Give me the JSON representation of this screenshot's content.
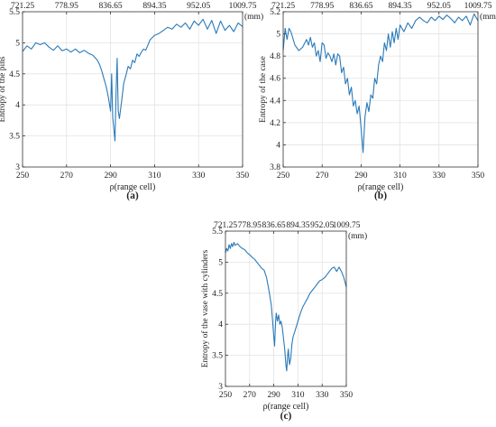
{
  "chart_data": [
    {
      "type": "line",
      "caption": "(a)",
      "xlabel": "ρ(range cell)",
      "ylabel": "Entropy of the pins",
      "top_axis_unit": "(mm)",
      "xlim": [
        250,
        350
      ],
      "ylim": [
        3,
        5.5
      ],
      "x_ticks": [
        250,
        270,
        290,
        310,
        330,
        350
      ],
      "y_ticks": [
        3,
        3.5,
        4,
        4.5,
        5,
        5.5
      ],
      "y_tick_labels": [
        "3",
        "3.5",
        "4",
        "4.5",
        "5",
        "5.5"
      ],
      "top_ticks": [
        "721.25",
        "778.95",
        "836.65",
        "894.35",
        "952.05",
        "1009.75"
      ],
      "grid": true,
      "color": "#2a7ab8",
      "points": [
        [
          250,
          4.86
        ],
        [
          252,
          4.95
        ],
        [
          254,
          4.9
        ],
        [
          256,
          5.0
        ],
        [
          258,
          4.97
        ],
        [
          260,
          5.0
        ],
        [
          262,
          4.93
        ],
        [
          264,
          4.88
        ],
        [
          266,
          4.95
        ],
        [
          268,
          4.87
        ],
        [
          270,
          4.9
        ],
        [
          272,
          4.85
        ],
        [
          274,
          4.9
        ],
        [
          276,
          4.84
        ],
        [
          278,
          4.88
        ],
        [
          280,
          4.83
        ],
        [
          282,
          4.8
        ],
        [
          284,
          4.72
        ],
        [
          285,
          4.65
        ],
        [
          286,
          4.55
        ],
        [
          287,
          4.42
        ],
        [
          288,
          4.3
        ],
        [
          289,
          4.12
        ],
        [
          290,
          3.9
        ],
        [
          290.5,
          4.5
        ],
        [
          291,
          3.8
        ],
        [
          292,
          3.42
        ],
        [
          292.5,
          4.2
        ],
        [
          293,
          4.75
        ],
        [
          293.5,
          3.9
        ],
        [
          294,
          3.78
        ],
        [
          295,
          4.05
        ],
        [
          296,
          4.35
        ],
        [
          297,
          4.48
        ],
        [
          298,
          4.62
        ],
        [
          299,
          4.58
        ],
        [
          300,
          4.72
        ],
        [
          301,
          4.68
        ],
        [
          302,
          4.82
        ],
        [
          303,
          4.78
        ],
        [
          304,
          4.85
        ],
        [
          305,
          4.9
        ],
        [
          306,
          4.88
        ],
        [
          308,
          5.05
        ],
        [
          310,
          5.12
        ],
        [
          312,
          5.15
        ],
        [
          314,
          5.2
        ],
        [
          316,
          5.25
        ],
        [
          318,
          5.22
        ],
        [
          320,
          5.3
        ],
        [
          322,
          5.25
        ],
        [
          324,
          5.32
        ],
        [
          326,
          5.22
        ],
        [
          328,
          5.35
        ],
        [
          330,
          5.28
        ],
        [
          332,
          5.38
        ],
        [
          334,
          5.22
        ],
        [
          336,
          5.36
        ],
        [
          338,
          5.15
        ],
        [
          340,
          5.35
        ],
        [
          342,
          5.2
        ],
        [
          344,
          5.28
        ],
        [
          346,
          5.18
        ],
        [
          348,
          5.32
        ],
        [
          350,
          5.26
        ]
      ]
    },
    {
      "type": "line",
      "caption": "(b)",
      "xlabel": "ρ(range cell)",
      "ylabel": "Entropy of the case",
      "top_axis_unit": "(mm)",
      "xlim": [
        250,
        350
      ],
      "ylim": [
        3.8,
        5.2
      ],
      "x_ticks": [
        250,
        270,
        290,
        310,
        330,
        350
      ],
      "y_ticks": [
        3.8,
        4,
        4.2,
        4.4,
        4.6,
        4.8,
        5,
        5.2
      ],
      "y_tick_labels": [
        "3.8",
        "4",
        "4.2",
        "4.4",
        "4.6",
        "4.8",
        "5",
        "5.2"
      ],
      "top_ticks": [
        "721.25",
        "778.95",
        "836.65",
        "894.35",
        "952.05",
        "1009.75"
      ],
      "grid": true,
      "color": "#2a7ab8",
      "points": [
        [
          250,
          4.85
        ],
        [
          251,
          5.05
        ],
        [
          252,
          4.95
        ],
        [
          253,
          5.05
        ],
        [
          254,
          5.02
        ],
        [
          256,
          4.9
        ],
        [
          258,
          4.85
        ],
        [
          260,
          4.88
        ],
        [
          262,
          4.95
        ],
        [
          263,
          4.9
        ],
        [
          264,
          4.97
        ],
        [
          265,
          4.88
        ],
        [
          266,
          4.92
        ],
        [
          267,
          4.8
        ],
        [
          268,
          4.85
        ],
        [
          269,
          4.75
        ],
        [
          270,
          4.92
        ],
        [
          271,
          4.9
        ],
        [
          272,
          4.78
        ],
        [
          273,
          4.83
        ],
        [
          274,
          4.8
        ],
        [
          275,
          4.75
        ],
        [
          276,
          4.82
        ],
        [
          277,
          4.72
        ],
        [
          278,
          4.82
        ],
        [
          279,
          4.8
        ],
        [
          280,
          4.65
        ],
        [
          281,
          4.7
        ],
        [
          282,
          4.55
        ],
        [
          283,
          4.6
        ],
        [
          284,
          4.45
        ],
        [
          285,
          4.52
        ],
        [
          286,
          4.35
        ],
        [
          287,
          4.4
        ],
        [
          288,
          4.28
        ],
        [
          289,
          4.35
        ],
        [
          290,
          4.15
        ],
        [
          291,
          3.93
        ],
        [
          292,
          4.25
        ],
        [
          293,
          4.38
        ],
        [
          294,
          4.3
        ],
        [
          295,
          4.45
        ],
        [
          296,
          4.42
        ],
        [
          297,
          4.6
        ],
        [
          298,
          4.55
        ],
        [
          299,
          4.72
        ],
        [
          300,
          4.8
        ],
        [
          301,
          4.75
        ],
        [
          302,
          4.92
        ],
        [
          303,
          4.85
        ],
        [
          304,
          5.0
        ],
        [
          305,
          4.88
        ],
        [
          306,
          5.02
        ],
        [
          307,
          4.92
        ],
        [
          308,
          5.05
        ],
        [
          309,
          4.95
        ],
        [
          310,
          5.08
        ],
        [
          312,
          5.02
        ],
        [
          314,
          5.1
        ],
        [
          316,
          5.05
        ],
        [
          318,
          5.12
        ],
        [
          320,
          5.15
        ],
        [
          322,
          5.12
        ],
        [
          324,
          5.1
        ],
        [
          326,
          5.15
        ],
        [
          328,
          5.12
        ],
        [
          330,
          5.16
        ],
        [
          332,
          5.13
        ],
        [
          334,
          5.17
        ],
        [
          336,
          5.14
        ],
        [
          338,
          5.1
        ],
        [
          340,
          5.15
        ],
        [
          342,
          5.12
        ],
        [
          344,
          5.16
        ],
        [
          346,
          5.08
        ],
        [
          348,
          5.18
        ],
        [
          350,
          5.12
        ]
      ]
    },
    {
      "type": "line",
      "caption": "(c)",
      "xlabel": "ρ(range cell)",
      "ylabel": "Entropy of the vase with cylinders",
      "top_axis_unit": "(mm)",
      "xlim": [
        250,
        350
      ],
      "ylim": [
        3,
        5.5
      ],
      "x_ticks": [
        250,
        270,
        290,
        310,
        330,
        350
      ],
      "y_ticks": [
        3,
        3.5,
        4,
        4.5,
        5,
        5.5
      ],
      "y_tick_labels": [
        "3",
        "3.5",
        "4",
        "4.5",
        "5",
        "5.5"
      ],
      "top_ticks": [
        "721.25",
        "778.95",
        "836.65",
        "894.35",
        "952.05",
        "1009.75"
      ],
      "grid": true,
      "color": "#2a7ab8",
      "points": [
        [
          250,
          5.15
        ],
        [
          251,
          5.22
        ],
        [
          252,
          5.18
        ],
        [
          253,
          5.28
        ],
        [
          254,
          5.22
        ],
        [
          255,
          5.3
        ],
        [
          256,
          5.25
        ],
        [
          257,
          5.32
        ],
        [
          258,
          5.27
        ],
        [
          260,
          5.3
        ],
        [
          262,
          5.25
        ],
        [
          264,
          5.22
        ],
        [
          266,
          5.2
        ],
        [
          268,
          5.15
        ],
        [
          270,
          5.12
        ],
        [
          272,
          5.08
        ],
        [
          274,
          5.05
        ],
        [
          276,
          5.0
        ],
        [
          278,
          4.95
        ],
        [
          280,
          4.9
        ],
        [
          282,
          4.87
        ],
        [
          284,
          4.75
        ],
        [
          286,
          4.55
        ],
        [
          288,
          4.3
        ],
        [
          289,
          4.05
        ],
        [
          290,
          3.8
        ],
        [
          290.7,
          3.65
        ],
        [
          291.5,
          4.05
        ],
        [
          292,
          4.18
        ],
        [
          293,
          4.05
        ],
        [
          294,
          4.15
        ],
        [
          295,
          4.0
        ],
        [
          296,
          4.05
        ],
        [
          297,
          3.95
        ],
        [
          298,
          3.78
        ],
        [
          299,
          3.6
        ],
        [
          300,
          3.35
        ],
        [
          300.7,
          3.25
        ],
        [
          301.5,
          3.5
        ],
        [
          302,
          3.6
        ],
        [
          303,
          3.35
        ],
        [
          304,
          3.45
        ],
        [
          305,
          3.68
        ],
        [
          306,
          3.8
        ],
        [
          308,
          3.92
        ],
        [
          310,
          4.05
        ],
        [
          312,
          4.18
        ],
        [
          314,
          4.28
        ],
        [
          316,
          4.35
        ],
        [
          318,
          4.42
        ],
        [
          320,
          4.5
        ],
        [
          322,
          4.55
        ],
        [
          324,
          4.6
        ],
        [
          326,
          4.65
        ],
        [
          328,
          4.7
        ],
        [
          330,
          4.72
        ],
        [
          332,
          4.75
        ],
        [
          334,
          4.8
        ],
        [
          336,
          4.85
        ],
        [
          338,
          4.9
        ],
        [
          340,
          4.92
        ],
        [
          342,
          4.85
        ],
        [
          344,
          4.92
        ],
        [
          346,
          4.85
        ],
        [
          348,
          4.75
        ],
        [
          350,
          4.6
        ]
      ]
    }
  ]
}
